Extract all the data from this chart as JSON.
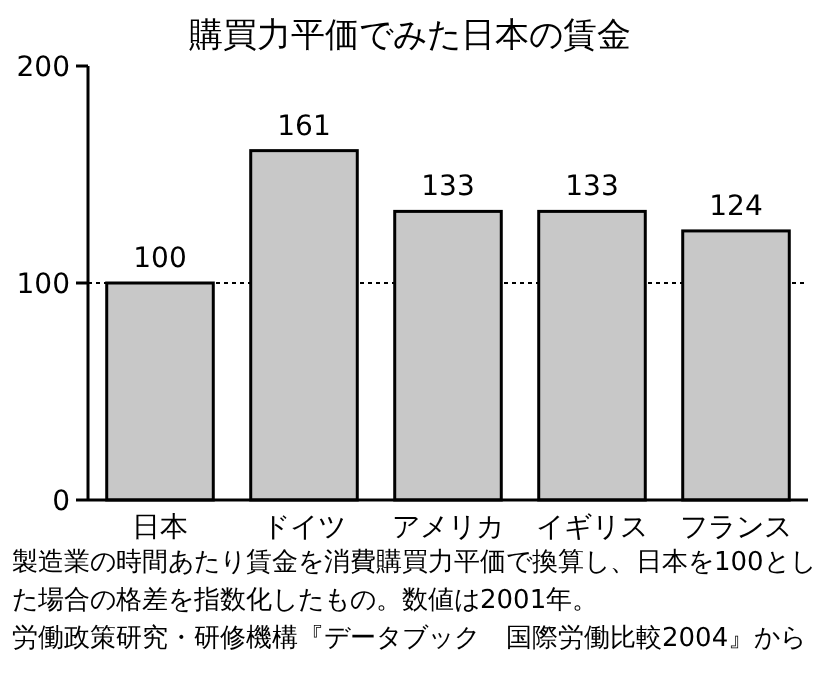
{
  "chart_data": {
    "type": "bar",
    "title": "購買力平価でみた日本の賃金",
    "categories": [
      "日本",
      "ドイツ",
      "アメリカ",
      "イギリス",
      "フランス"
    ],
    "values": [
      100,
      161,
      133,
      133,
      124
    ],
    "color": "#c8c8c8",
    "data_labels": true,
    "ylim": [
      0,
      200
    ],
    "yticks": [
      0,
      100,
      200
    ],
    "grid": false,
    "ref_lines": [
      {
        "axis": "y",
        "value": 100,
        "line_style": "dotted",
        "color": "#000000"
      }
    ],
    "annotations": [
      "製造業の時間あたり賃金を消費購買力平価で換算し、日本を100とした場合の格差を指数化したもの。数値は2001年。",
      "労働政策研究・研修機構『データブック　国際労働比較2004』から"
    ]
  }
}
